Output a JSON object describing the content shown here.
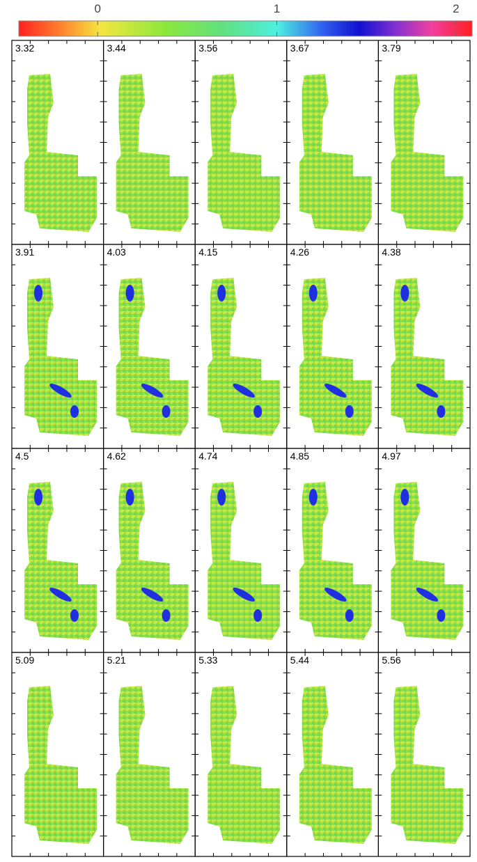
{
  "colorbar": {
    "lim": [
      -0.44,
      2.09
    ],
    "ticks": [
      0,
      1,
      2
    ]
  },
  "panels": [
    "3.32",
    "3.44",
    "3.56",
    "3.67",
    "3.79",
    "3.91",
    "4.03",
    "4.15",
    "4.26",
    "4.38",
    "4.5",
    "4.62",
    "4.74",
    "4.85",
    "4.97",
    "5.09",
    "5.21",
    "5.33",
    "5.44",
    "5.56"
  ]
}
